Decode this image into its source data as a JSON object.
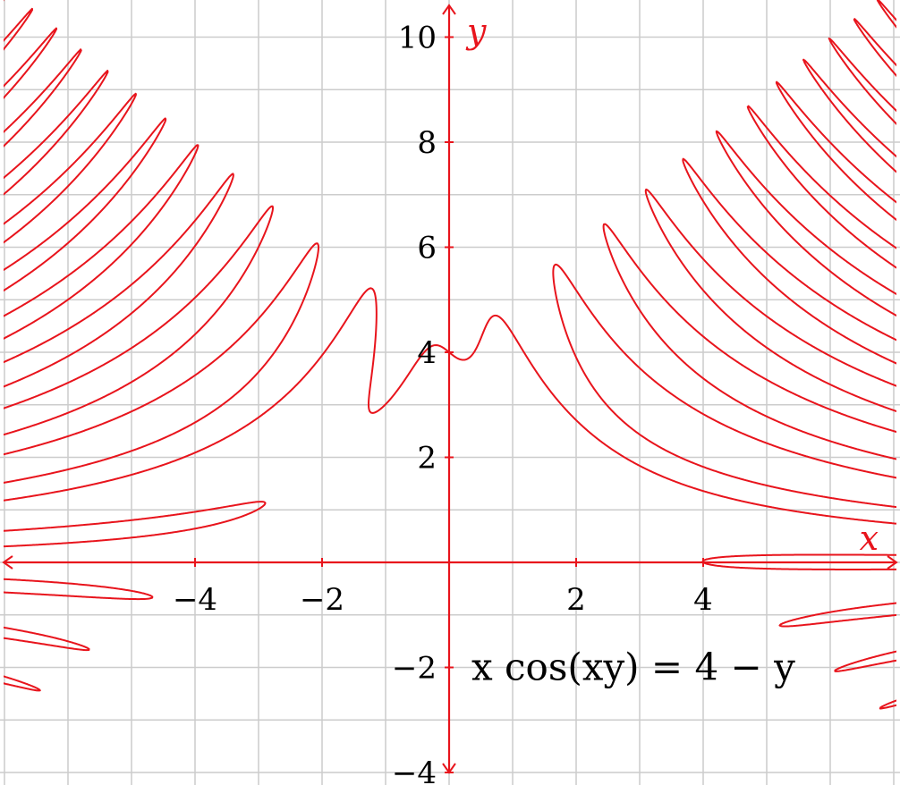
{
  "chart_data": {
    "type": "line",
    "title": "",
    "xlabel": "x",
    "ylabel": "y",
    "xlim": [
      -7,
      7
    ],
    "ylim": [
      -4,
      10.6
    ],
    "grid": true,
    "x_ticks": [
      {
        "value": -4,
        "label": "−4"
      },
      {
        "value": -2,
        "label": "−2"
      },
      {
        "value": 2,
        "label": "2"
      },
      {
        "value": 4,
        "label": "4"
      }
    ],
    "y_ticks": [
      {
        "value": -4,
        "label": "−4"
      },
      {
        "value": -2,
        "label": "−2"
      },
      {
        "value": 2,
        "label": "2"
      },
      {
        "value": 4,
        "label": "4"
      },
      {
        "value": 6,
        "label": "6"
      },
      {
        "value": 8,
        "label": "8"
      },
      {
        "value": 10,
        "label": "10"
      }
    ],
    "annotation": {
      "text": "x cos(xy) = 4 − y",
      "x": 2.9,
      "y": -2
    },
    "equation": "x*cos(x*y) = 4 - y",
    "colors": {
      "curve": "#e8141c",
      "axes": "#e8141c",
      "grid": "#cccccc"
    },
    "series": [
      {
        "type": "implicit",
        "values": [
          [
            -1.28,
            3.0
          ],
          [
            -1.12,
            3.4
          ],
          [
            -0.85,
            3.85
          ],
          [
            -0.55,
            4.05
          ],
          [
            -0.2,
            4.1
          ],
          [
            0.0,
            4.0
          ],
          [
            0.2,
            3.88
          ],
          [
            0.45,
            4.2
          ],
          [
            0.75,
            4.65
          ],
          [
            1.0,
            4.45
          ],
          [
            1.3,
            3.8
          ],
          [
            1.8,
            3.1
          ],
          [
            2.5,
            2.5
          ],
          [
            3.5,
            2.0
          ],
          [
            4.5,
            1.62
          ],
          [
            5.5,
            1.36
          ],
          [
            7.0,
            1.05
          ]
        ]
      }
    ]
  }
}
